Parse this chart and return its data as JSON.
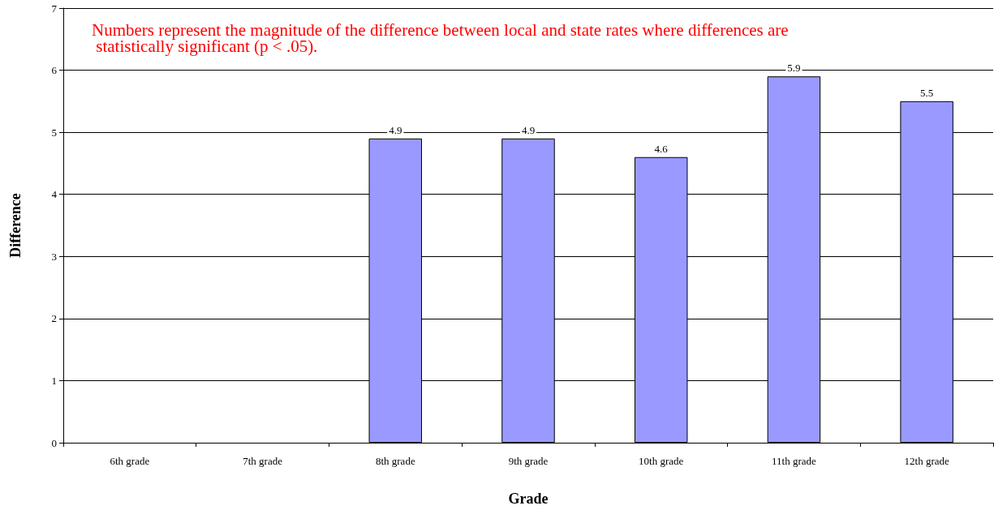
{
  "chart_data": {
    "type": "bar",
    "xlabel": "Grade",
    "ylabel": "Difference",
    "categories": [
      "6th grade",
      "7th grade",
      "8th grade",
      "9th grade",
      "10th grade",
      "11th grade",
      "12th grade"
    ],
    "values": [
      null,
      null,
      4.9,
      4.9,
      4.6,
      5.9,
      5.5
    ],
    "color": "#9999ff",
    "ylim": [
      0,
      7
    ],
    "yticks": [
      0,
      1,
      2,
      3,
      4,
      5,
      6,
      7
    ],
    "grid": "y",
    "data_labels": true,
    "annotations": [
      "Numbers represent the magnitude of the difference between local and state rates where differences are statistically significant (p < .05)."
    ]
  }
}
